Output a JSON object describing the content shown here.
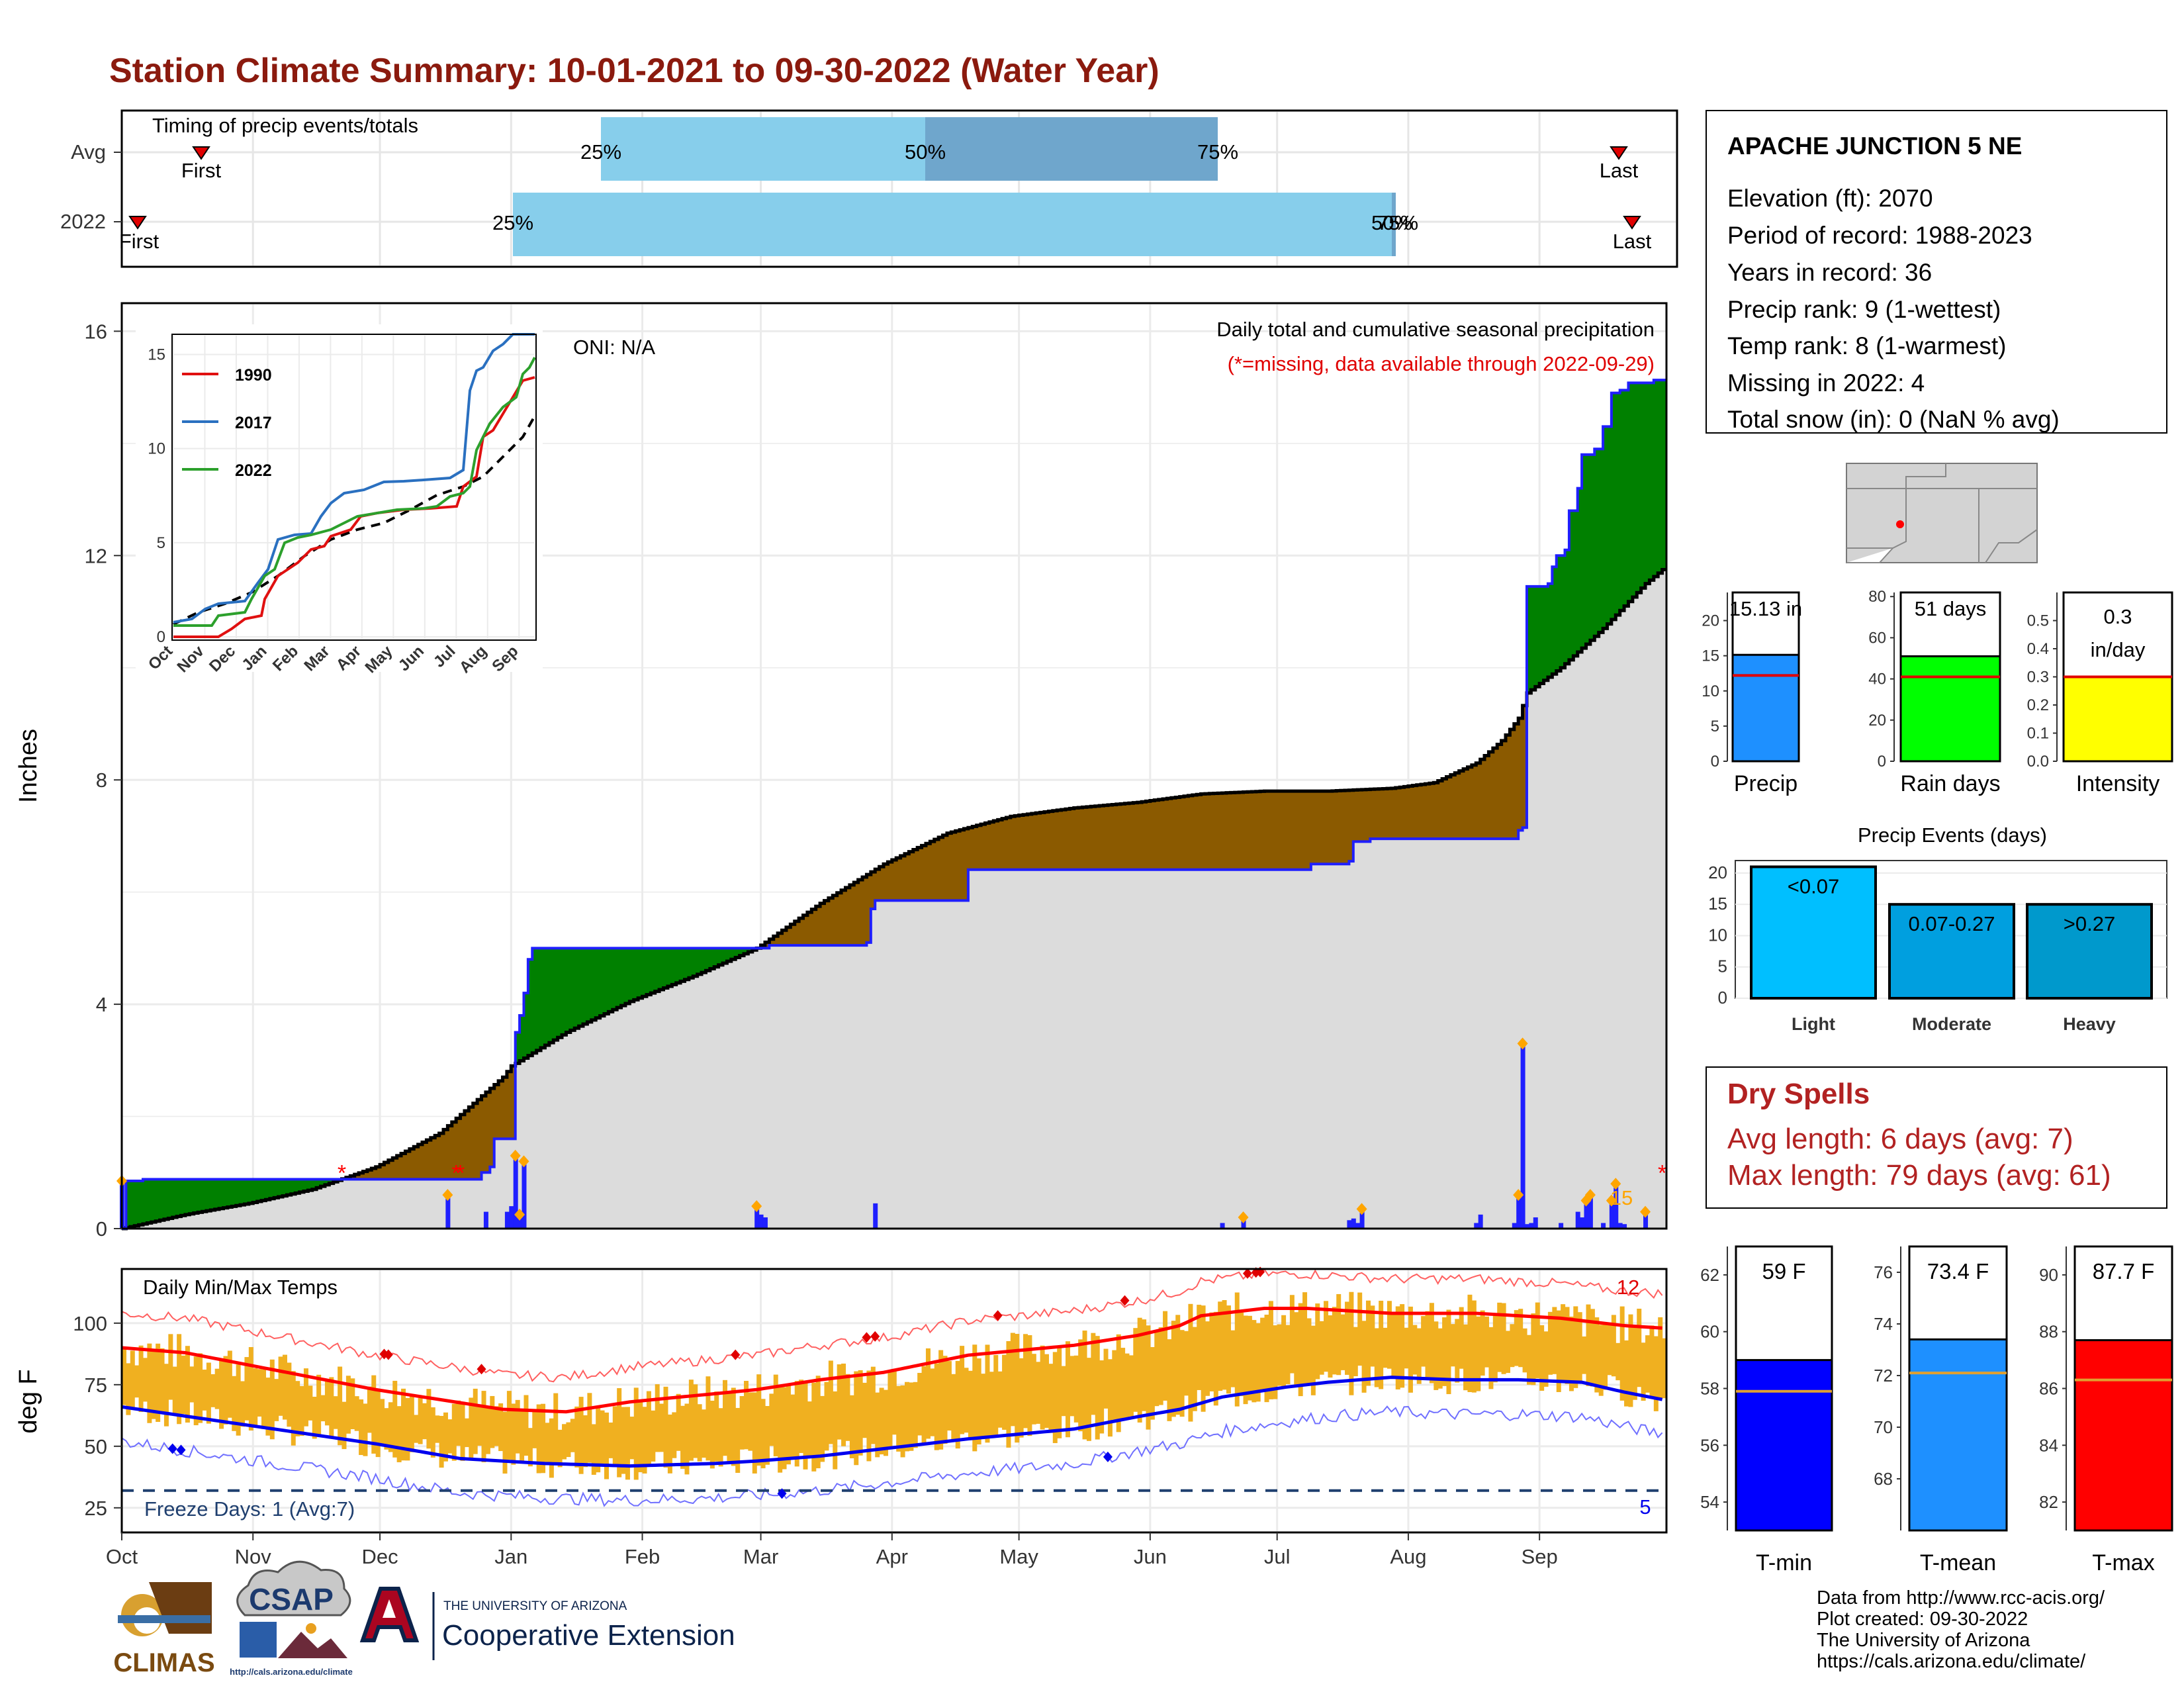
{
  "title": "Station Climate Summary: 10-01-2021 to 09-30-2022 (Water Year)",
  "colors": {
    "title": "#8b1a0e",
    "wetter": "#008000",
    "drier": "#8b5a00",
    "avg_fill": "#dcdcdc",
    "precip_bar": "#1f1fff",
    "event_marker": "#ffa500",
    "missing": "#ff0000",
    "tmin": "#0000ee",
    "tmax": "#ff0000",
    "range_bar": "#f0b020",
    "freeze_line": "#1f3f6f",
    "timing_light": "#87ceeb",
    "timing_dark": "#6fa6cc",
    "dry_spells": "#b22222"
  },
  "timing": {
    "label": "Timing of precip events/totals",
    "rows": [
      "Avg",
      "2022"
    ],
    "first_label": "First",
    "last_label": "Last",
    "pct_labels": [
      "25%",
      "50%",
      "75%"
    ],
    "yr_pct_labels": [
      "25%",
      "50%",
      "75%"
    ]
  },
  "months": [
    "Oct",
    "Nov",
    "Dec",
    "Jan",
    "Feb",
    "Mar",
    "Apr",
    "May",
    "Jun",
    "Jul",
    "Aug",
    "Sep"
  ],
  "precip_panel": {
    "ylabel": "Inches",
    "yticks": [
      "0",
      "4",
      "8",
      "12",
      "16"
    ],
    "oni": "ONI: N/A",
    "title": "Daily total and cumulative seasonal precipitation",
    "missing_note": "(*=missing, data available through 2022-09-29)",
    "corner_count": "15"
  },
  "inset": {
    "legend": [
      "1990",
      "2017",
      "2022"
    ],
    "yticks": [
      "0",
      "5",
      "10",
      "15"
    ],
    "xticks": [
      "Oct",
      "Nov",
      "Dec",
      "Jan",
      "Feb",
      "Mar",
      "Apr",
      "May",
      "Jun",
      "Jul",
      "Aug",
      "Sep"
    ]
  },
  "temp_panel": {
    "ylabel": "deg F",
    "title": "Daily Min/Max Temps",
    "yticks": [
      "25",
      "50",
      "75",
      "100"
    ],
    "freeze": "Freeze Days: 1 (Avg:7)",
    "count_hot": "12",
    "count_cold": "5"
  },
  "station": {
    "name": "APACHE JUNCTION 5 NE",
    "lines": [
      "Elevation (ft): 2070",
      "Period of record: 1988-2023",
      "Years in record: 36",
      "Precip rank: 9 (1-wettest)",
      "Temp rank: 8 (1-warmest)",
      "Missing in 2022: 4",
      "Total snow (in): 0 (NaN % avg)"
    ]
  },
  "summary_bars": [
    {
      "label": "Precip",
      "value_text": "15.13 in",
      "value": 15.13,
      "avg": 12.2,
      "ymax": 24,
      "ticks": [
        "0",
        "5",
        "10",
        "15",
        "20"
      ],
      "color": "#1e90ff"
    },
    {
      "label": "Rain days",
      "value_text": "51 days",
      "value": 51,
      "avg": 41,
      "ymax": 82,
      "ticks": [
        "0",
        "20",
        "40",
        "60",
        "80"
      ],
      "color": "#00ff00"
    },
    {
      "label": "Intensity",
      "value_text": "0.3 in/day",
      "value": 0.3,
      "avg": 0.3,
      "ymax": 0.6,
      "ticks": [
        "0.0",
        "0.1",
        "0.2",
        "0.3",
        "0.4",
        "0.5"
      ],
      "color": "#ffff00"
    }
  ],
  "events": {
    "title": "Precip Events (days)",
    "yticks": [
      "0",
      "5",
      "10",
      "15",
      "20"
    ],
    "bars": [
      {
        "label": "Light",
        "text": "<0.07",
        "value": 21,
        "color": "#00bfff"
      },
      {
        "label": "Moderate",
        "text": "0.07-0.27",
        "value": 15,
        "color": "#009fdf"
      },
      {
        "label": "Heavy",
        "text": ">0.27",
        "value": 15,
        "color": "#0099cc"
      }
    ]
  },
  "dry_spells": {
    "title": "Dry Spells",
    "avg_length": "Avg length: 6 days (avg: 7)",
    "max_length": "Max length: 79 days (avg: 61)"
  },
  "temp_bars": [
    {
      "label": "T-min",
      "value_text": "59 F",
      "value": 59,
      "avg": 57.9,
      "ymin": 53,
      "ymax": 63,
      "ticks": [
        "54",
        "56",
        "58",
        "60",
        "62"
      ],
      "color": "#0000ff"
    },
    {
      "label": "T-mean",
      "value_text": "73.4 F",
      "value": 73.4,
      "avg": 72.1,
      "ymin": 66,
      "ymax": 77,
      "ticks": [
        "68",
        "70",
        "72",
        "74",
        "76"
      ],
      "color": "#1e90ff"
    },
    {
      "label": "T-max",
      "value_text": "87.7 F",
      "value": 87.7,
      "avg": 86.3,
      "ymin": 81,
      "ymax": 91,
      "ticks": [
        "82",
        "84",
        "86",
        "88",
        "90"
      ],
      "color": "#ff0000"
    }
  ],
  "footer": {
    "lines": [
      "Data from http://www.rcc-acis.org/",
      "Plot created: 09-30-2022",
      "The University of Arizona",
      "https://cals.arizona.edu/climate/"
    ],
    "climas": "CLIMAS",
    "csap": "CSAP",
    "csap_url": "http://cals.arizona.edu/climate",
    "ua_small": "THE UNIVERSITY OF ARIZONA",
    "ua_big": "Cooperative Extension"
  },
  "chart_data": [
    {
      "type": "area",
      "title": "Daily total and cumulative seasonal precipitation",
      "ylabel": "Inches",
      "ylim": [
        0,
        16.5
      ],
      "x_unit": "day of water year (Oct 1 = 0)",
      "cumulative_2022": {
        "days": [
          0,
          1,
          5,
          60,
          61,
          85,
          86,
          87,
          88,
          91,
          92,
          93,
          94,
          95,
          96,
          97,
          150,
          151,
          152,
          153,
          155,
          175,
          176,
          177,
          178,
          199,
          200,
          225,
          255,
          280,
          281,
          290,
          291,
          292,
          295,
          330,
          331,
          332,
          337,
          338,
          339,
          341,
          342,
          344,
          345,
          348,
          350,
          352,
          354,
          356,
          362,
          364
        ],
        "values": [
          0.0,
          0.85,
          0.88,
          0.88,
          0.88,
          1.0,
          1.0,
          1.1,
          1.6,
          1.6,
          1.6,
          3.5,
          3.8,
          4.2,
          4.8,
          5.0,
          5.0,
          5.0,
          5.0,
          5.05,
          5.05,
          5.05,
          5.1,
          5.7,
          5.85,
          5.85,
          6.4,
          6.4,
          6.4,
          6.4,
          6.5,
          6.55,
          6.9,
          6.9,
          6.95,
          7.1,
          7.15,
          11.45,
          11.5,
          11.8,
          12.0,
          12.1,
          12.8,
          13.2,
          13.8,
          13.9,
          14.3,
          14.9,
          14.95,
          15.08,
          15.13,
          15.13
        ]
      },
      "cumulative_average": {
        "days": [
          0,
          15,
          30,
          45,
          60,
          75,
          90,
          92,
          105,
          120,
          135,
          150,
          165,
          180,
          195,
          210,
          225,
          240,
          255,
          270,
          285,
          300,
          310,
          320,
          326,
          328,
          330,
          332,
          340,
          350,
          360,
          364
        ],
        "values": [
          0.0,
          0.25,
          0.45,
          0.7,
          1.1,
          1.7,
          2.7,
          2.9,
          3.5,
          4.05,
          4.5,
          5.0,
          5.8,
          6.5,
          7.05,
          7.35,
          7.5,
          7.6,
          7.75,
          7.8,
          7.8,
          7.85,
          7.95,
          8.3,
          8.7,
          8.9,
          9.1,
          9.55,
          10.0,
          10.7,
          11.5,
          11.75
        ]
      },
      "daily_precip": {
        "days": [
          0,
          77,
          86,
          91,
          92,
          93,
          94,
          95,
          150,
          151,
          152,
          178,
          260,
          265,
          290,
          291,
          292,
          293,
          320,
          321,
          329,
          330,
          331,
          332,
          333,
          334,
          340,
          344,
          345,
          346,
          347,
          350,
          352,
          353,
          354,
          355,
          360
        ],
        "inches": [
          0.85,
          0.6,
          0.3,
          0.3,
          0.4,
          1.3,
          0.25,
          1.2,
          0.4,
          0.25,
          0.2,
          0.45,
          0.1,
          0.2,
          0.15,
          0.18,
          0.1,
          0.35,
          0.1,
          0.25,
          0.1,
          0.6,
          3.3,
          0.08,
          0.1,
          0.2,
          0.1,
          0.3,
          0.2,
          0.5,
          0.6,
          0.1,
          0.5,
          0.8,
          0.1,
          0.08,
          0.3
        ]
      }
    },
    {
      "type": "line",
      "title": "",
      "series": [
        {
          "name": "1990"
        },
        {
          "name": "2017"
        },
        {
          "name": "2022"
        }
      ],
      "xlabel": "",
      "ylabel": "",
      "ylim": [
        0,
        16
      ]
    },
    {
      "type": "bar",
      "title": "Daily Min/Max Temps",
      "ylabel": "deg F",
      "ylim": [
        15,
        122
      ],
      "freeze_threshold": 32,
      "tmax_avg_smooth": {
        "days": [
          0,
          15,
          30,
          60,
          90,
          105,
          120,
          150,
          165,
          180,
          200,
          225,
          240,
          250,
          255,
          270,
          280,
          290,
          300,
          320,
          340,
          355,
          364
        ],
        "values": [
          90,
          88,
          83,
          73,
          65,
          64,
          68,
          73,
          77,
          80,
          87,
          91,
          95,
          99,
          103,
          106,
          106,
          105,
          104,
          104,
          102,
          99,
          98
        ]
      },
      "tmin_avg_smooth": {
        "days": [
          0,
          20,
          40,
          60,
          80,
          100,
          120,
          140,
          150,
          165,
          180,
          200,
          225,
          240,
          250,
          260,
          275,
          285,
          300,
          315,
          330,
          345,
          355,
          364
        ],
        "values": [
          66,
          61,
          56,
          51,
          45,
          43,
          42,
          43,
          44,
          46,
          49,
          53,
          57,
          62,
          65,
          70,
          74,
          76,
          78,
          77,
          77,
          76,
          72,
          69
        ]
      }
    }
  ]
}
